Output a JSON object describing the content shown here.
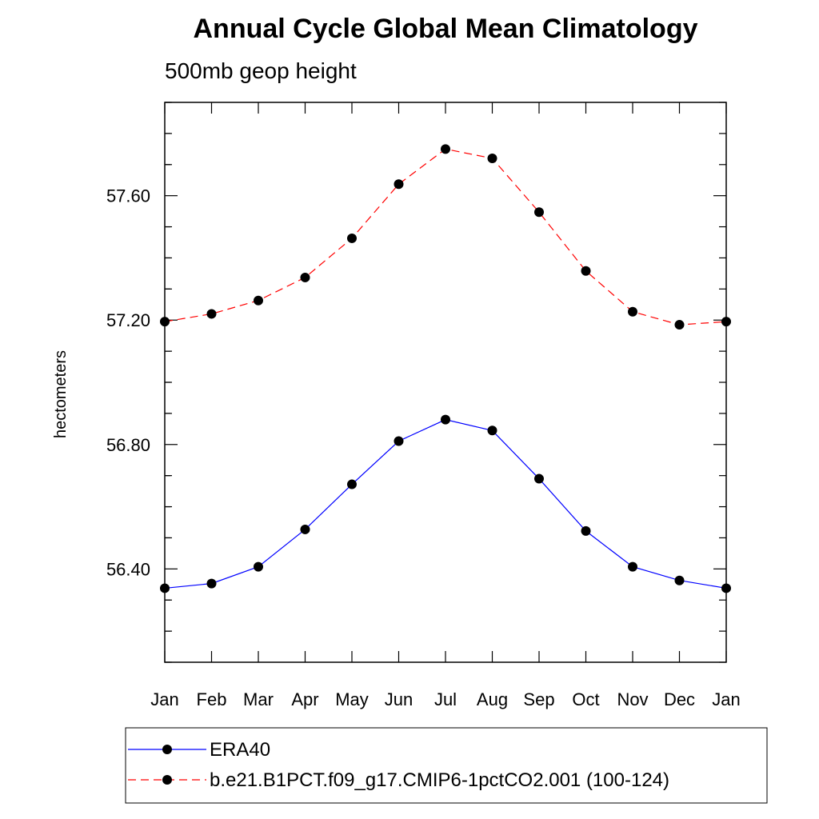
{
  "chart_data": {
    "type": "line",
    "title": "Annual Cycle Global Mean Climatology",
    "subtitle": "500mb geop height",
    "xlabel": "",
    "ylabel": "hectometers",
    "categories": [
      "Jan",
      "Feb",
      "Mar",
      "Apr",
      "May",
      "Jun",
      "Jul",
      "Aug",
      "Sep",
      "Oct",
      "Nov",
      "Dec",
      "Jan"
    ],
    "ylim": [
      56.1,
      57.9
    ],
    "yticks": [
      56.4,
      56.8,
      57.2,
      57.6
    ],
    "ytick_labels": [
      "56.40",
      "56.80",
      "57.20",
      "57.60"
    ],
    "series": [
      {
        "name": "ERA40",
        "color": "#0000ff",
        "dash": "solid",
        "values": [
          56.338,
          56.353,
          56.407,
          56.527,
          56.672,
          56.811,
          56.88,
          56.845,
          56.69,
          56.522,
          56.407,
          56.363,
          56.338
        ]
      },
      {
        "name": "b.e21.B1PCT.f09_g17.CMIP6-1pctCO2.001 (100-124)",
        "color": "#ff0000",
        "dash": "dashed",
        "values": [
          57.195,
          57.22,
          57.263,
          57.337,
          57.463,
          57.637,
          57.75,
          57.72,
          57.547,
          57.358,
          57.227,
          57.185,
          57.195
        ]
      }
    ],
    "grid": false,
    "legend_position": "bottom"
  }
}
